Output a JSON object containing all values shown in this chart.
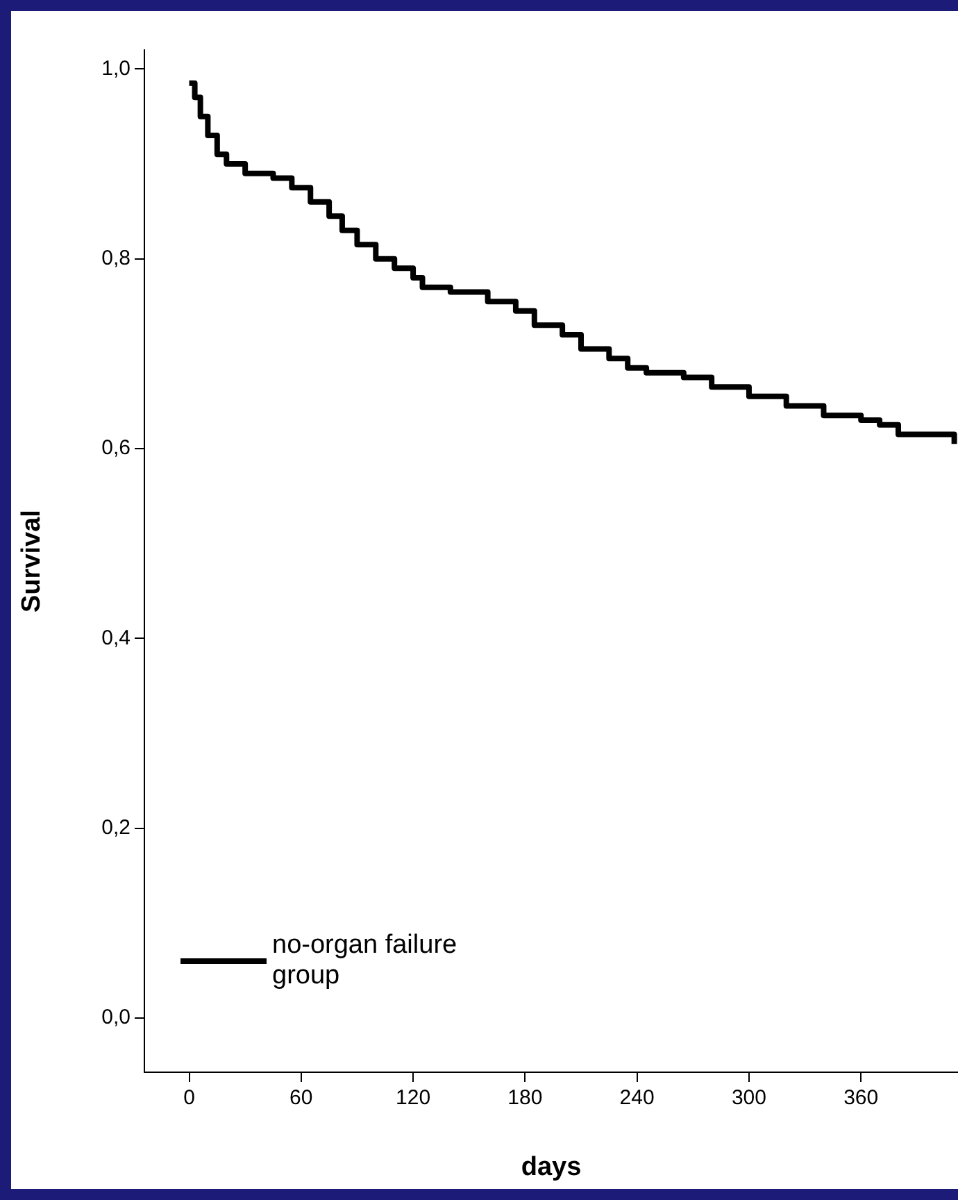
{
  "chart_data": {
    "type": "step",
    "xlabel": "days",
    "ylabel": "Survival",
    "xlim": [
      -24,
      412
    ],
    "ylim": [
      -0.057,
      1.02
    ],
    "xticks": [
      0,
      60,
      120,
      180,
      240,
      300,
      360
    ],
    "yticks": [
      {
        "value": 0,
        "label": "0,0"
      },
      {
        "value": 0.2,
        "label": "0,2"
      },
      {
        "value": 0.4,
        "label": "0,4"
      },
      {
        "value": 0.6,
        "label": "0,6"
      },
      {
        "value": 0.8,
        "label": "0,8"
      },
      {
        "value": 1,
        "label": "1,0"
      }
    ],
    "grid": false,
    "legend": "bottom left",
    "marker": "none",
    "line_style": "solid",
    "series": [
      {
        "name": "no-organ failure group",
        "color": "#000000",
        "x": [
          0,
          3,
          6,
          10,
          15,
          20,
          30,
          45,
          55,
          65,
          75,
          82,
          90,
          100,
          110,
          120,
          125,
          140,
          160,
          175,
          185,
          200,
          210,
          225,
          235,
          245,
          265,
          280,
          300,
          320,
          340,
          360,
          370,
          380,
          410
        ],
        "values": [
          0.985,
          0.97,
          0.95,
          0.93,
          0.91,
          0.9,
          0.89,
          0.885,
          0.875,
          0.86,
          0.845,
          0.83,
          0.815,
          0.8,
          0.79,
          0.78,
          0.77,
          0.765,
          0.755,
          0.745,
          0.73,
          0.72,
          0.705,
          0.695,
          0.685,
          0.68,
          0.675,
          0.665,
          0.655,
          0.645,
          0.635,
          0.63,
          0.625,
          0.615,
          0.605
        ]
      }
    ]
  }
}
